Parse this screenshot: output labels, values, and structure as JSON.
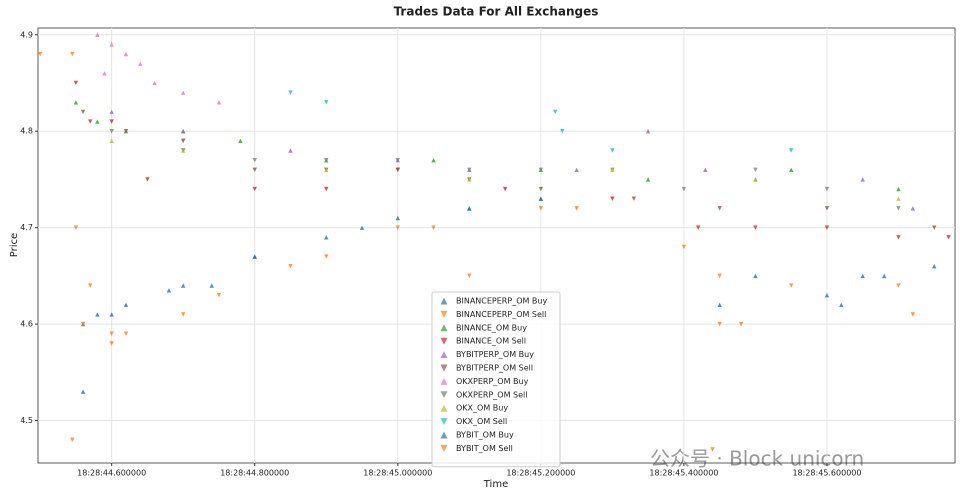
{
  "chart_data": {
    "type": "scatter",
    "title": "Trades Data For All Exchanges",
    "x_label": "Time",
    "y_label": "Price",
    "xlim": [
      44.497,
      45.779
    ],
    "ylim": [
      4.456,
      4.907
    ],
    "xticks": [
      {
        "value": 44.6,
        "label": "18:28:44.600000"
      },
      {
        "value": 44.8,
        "label": "18:28:44.800000"
      },
      {
        "value": 45.0,
        "label": "18:28:45.000000"
      },
      {
        "value": 45.2,
        "label": "18:28:45.200000"
      },
      {
        "value": 45.4,
        "label": "18:28:45.400000"
      },
      {
        "value": 45.6,
        "label": "18:28:45.600000"
      }
    ],
    "yticks": [
      4.5,
      4.6,
      4.7,
      4.8,
      4.9
    ],
    "grid": true,
    "legend": "lower center",
    "watermark": "公众号 · Block unicorn",
    "series": [
      {
        "name": "BINANCEPERP_OM Buy",
        "color": "#1f77b4",
        "marker": "^",
        "x": [
          44.56,
          44.58,
          44.62,
          44.68,
          44.74,
          44.8,
          44.9,
          45.0,
          45.1,
          45.2,
          45.5,
          45.62,
          45.68,
          45.75
        ],
        "values": [
          4.53,
          4.61,
          4.62,
          4.635,
          4.64,
          4.67,
          4.69,
          4.71,
          4.72,
          4.73,
          4.65,
          4.62,
          4.65,
          4.66
        ]
      },
      {
        "name": "BINANCEPERP_OM Sell",
        "color": "#ff7f0e",
        "marker": "v",
        "x": [
          44.545,
          44.545,
          44.55,
          44.57,
          44.6,
          44.62,
          44.7,
          44.85,
          45.05,
          45.1,
          45.25,
          45.4,
          45.44,
          45.45,
          45.55,
          45.72
        ],
        "values": [
          4.88,
          4.48,
          4.7,
          4.64,
          4.59,
          4.59,
          4.61,
          4.66,
          4.7,
          4.65,
          4.72,
          4.68,
          4.47,
          4.6,
          4.64,
          4.61
        ]
      },
      {
        "name": "BINANCE_OM Buy",
        "color": "#2ca02c",
        "marker": "^",
        "x": [
          44.55,
          44.58,
          44.62,
          44.7,
          44.78,
          44.9,
          45.05,
          45.2,
          45.35,
          45.55,
          45.7
        ],
        "values": [
          4.83,
          4.81,
          4.8,
          4.8,
          4.79,
          4.77,
          4.77,
          4.76,
          4.75,
          4.76,
          4.74
        ]
      },
      {
        "name": "BINANCE_OM Sell",
        "color": "#d62728",
        "marker": "v",
        "x": [
          44.55,
          44.57,
          44.6,
          44.65,
          44.7,
          44.8,
          44.9,
          45.0,
          45.15,
          45.3,
          45.42,
          45.5,
          45.6,
          45.7,
          45.77
        ],
        "values": [
          4.85,
          4.81,
          4.81,
          4.75,
          4.79,
          4.74,
          4.74,
          4.76,
          4.74,
          4.73,
          4.7,
          4.7,
          4.7,
          4.69,
          4.69
        ]
      },
      {
        "name": "BYBITPERP_OM Buy",
        "color": "#9467bd",
        "marker": "^",
        "x": [
          44.6,
          44.7,
          44.85,
          45.0,
          45.1,
          45.25,
          45.35,
          45.43,
          45.5,
          45.65,
          45.72
        ],
        "values": [
          4.82,
          4.8,
          4.78,
          4.77,
          4.76,
          4.76,
          4.8,
          4.76,
          4.75,
          4.75,
          4.72
        ]
      },
      {
        "name": "BYBITPERP_OM Sell",
        "color": "#8c564b",
        "marker": "v",
        "x": [
          44.56,
          44.62,
          44.7,
          44.8,
          44.9,
          45.0,
          45.1,
          45.2,
          45.33,
          45.45,
          45.6,
          45.75
        ],
        "values": [
          4.82,
          4.8,
          4.78,
          4.76,
          4.76,
          4.76,
          4.75,
          4.74,
          4.73,
          4.72,
          4.72,
          4.7
        ]
      },
      {
        "name": "OKXPERP_OM Buy",
        "color": "#e377c2",
        "marker": "^",
        "x": [
          44.58,
          44.59,
          44.6,
          44.62,
          44.64,
          44.66,
          44.7,
          44.75
        ],
        "values": [
          4.9,
          4.86,
          4.89,
          4.88,
          4.87,
          4.85,
          4.84,
          4.83
        ]
      },
      {
        "name": "OKXPERP_OM Sell",
        "color": "#7f7f7f",
        "marker": "v",
        "x": [
          44.6,
          44.7,
          44.8,
          44.9,
          45.0,
          45.1,
          45.2,
          45.3,
          45.4,
          45.5,
          45.6,
          45.7
        ],
        "values": [
          4.8,
          4.79,
          4.77,
          4.77,
          4.77,
          4.76,
          4.76,
          4.76,
          4.74,
          4.76,
          4.74,
          4.72
        ]
      },
      {
        "name": "OKX_OM Buy",
        "color": "#bcbd22",
        "marker": "^",
        "x": [
          44.6,
          44.7,
          44.9,
          45.1,
          45.3,
          45.5,
          45.7
        ],
        "values": [
          4.79,
          4.78,
          4.76,
          4.75,
          4.76,
          4.75,
          4.73
        ]
      },
      {
        "name": "OKX_OM Sell",
        "color": "#17becf",
        "marker": "v",
        "x": [
          44.85,
          44.9,
          45.22,
          45.23,
          45.3,
          45.55
        ],
        "values": [
          4.84,
          4.83,
          4.82,
          4.8,
          4.78,
          4.78
        ]
      },
      {
        "name": "BYBIT_OM Buy",
        "color": "#1f77b4",
        "marker": "^",
        "x": [
          44.56,
          44.6,
          44.7,
          44.8,
          44.95,
          45.1,
          45.2,
          45.45,
          45.6,
          45.65
        ],
        "values": [
          4.6,
          4.61,
          4.64,
          4.67,
          4.7,
          4.72,
          4.73,
          4.62,
          4.63,
          4.65
        ]
      },
      {
        "name": "BYBIT_OM Sell",
        "color": "#ff7f0e",
        "marker": "v",
        "x": [
          44.5,
          44.56,
          44.6,
          44.75,
          44.9,
          45.0,
          45.2,
          45.45,
          45.48,
          45.7
        ],
        "values": [
          4.88,
          4.6,
          4.58,
          4.63,
          4.67,
          4.7,
          4.72,
          4.65,
          4.6,
          4.64
        ]
      }
    ]
  }
}
